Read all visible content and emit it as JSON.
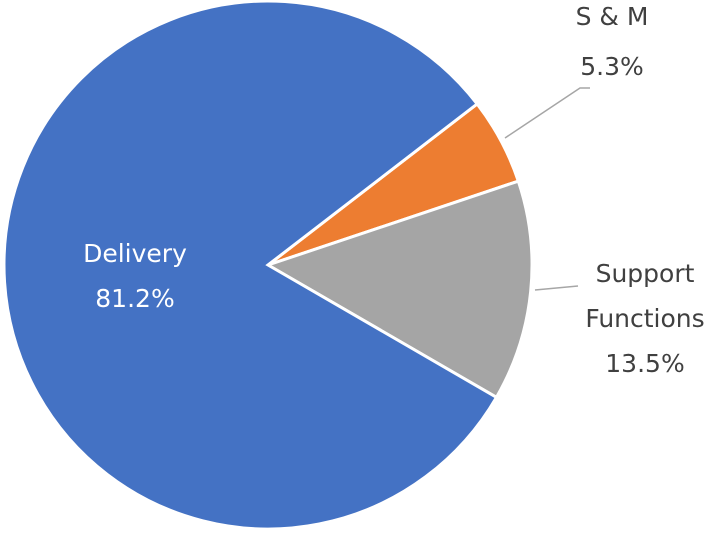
{
  "chart_data": {
    "type": "pie",
    "categories": [
      "S & M",
      "Support Functions",
      "Delivery"
    ],
    "values": [
      5.3,
      13.5,
      81.2
    ],
    "value_labels": [
      "5.3%",
      "13.5%",
      "81.2%"
    ],
    "colors": [
      "#ed7d31",
      "#a5a5a5",
      "#4472c4"
    ]
  }
}
